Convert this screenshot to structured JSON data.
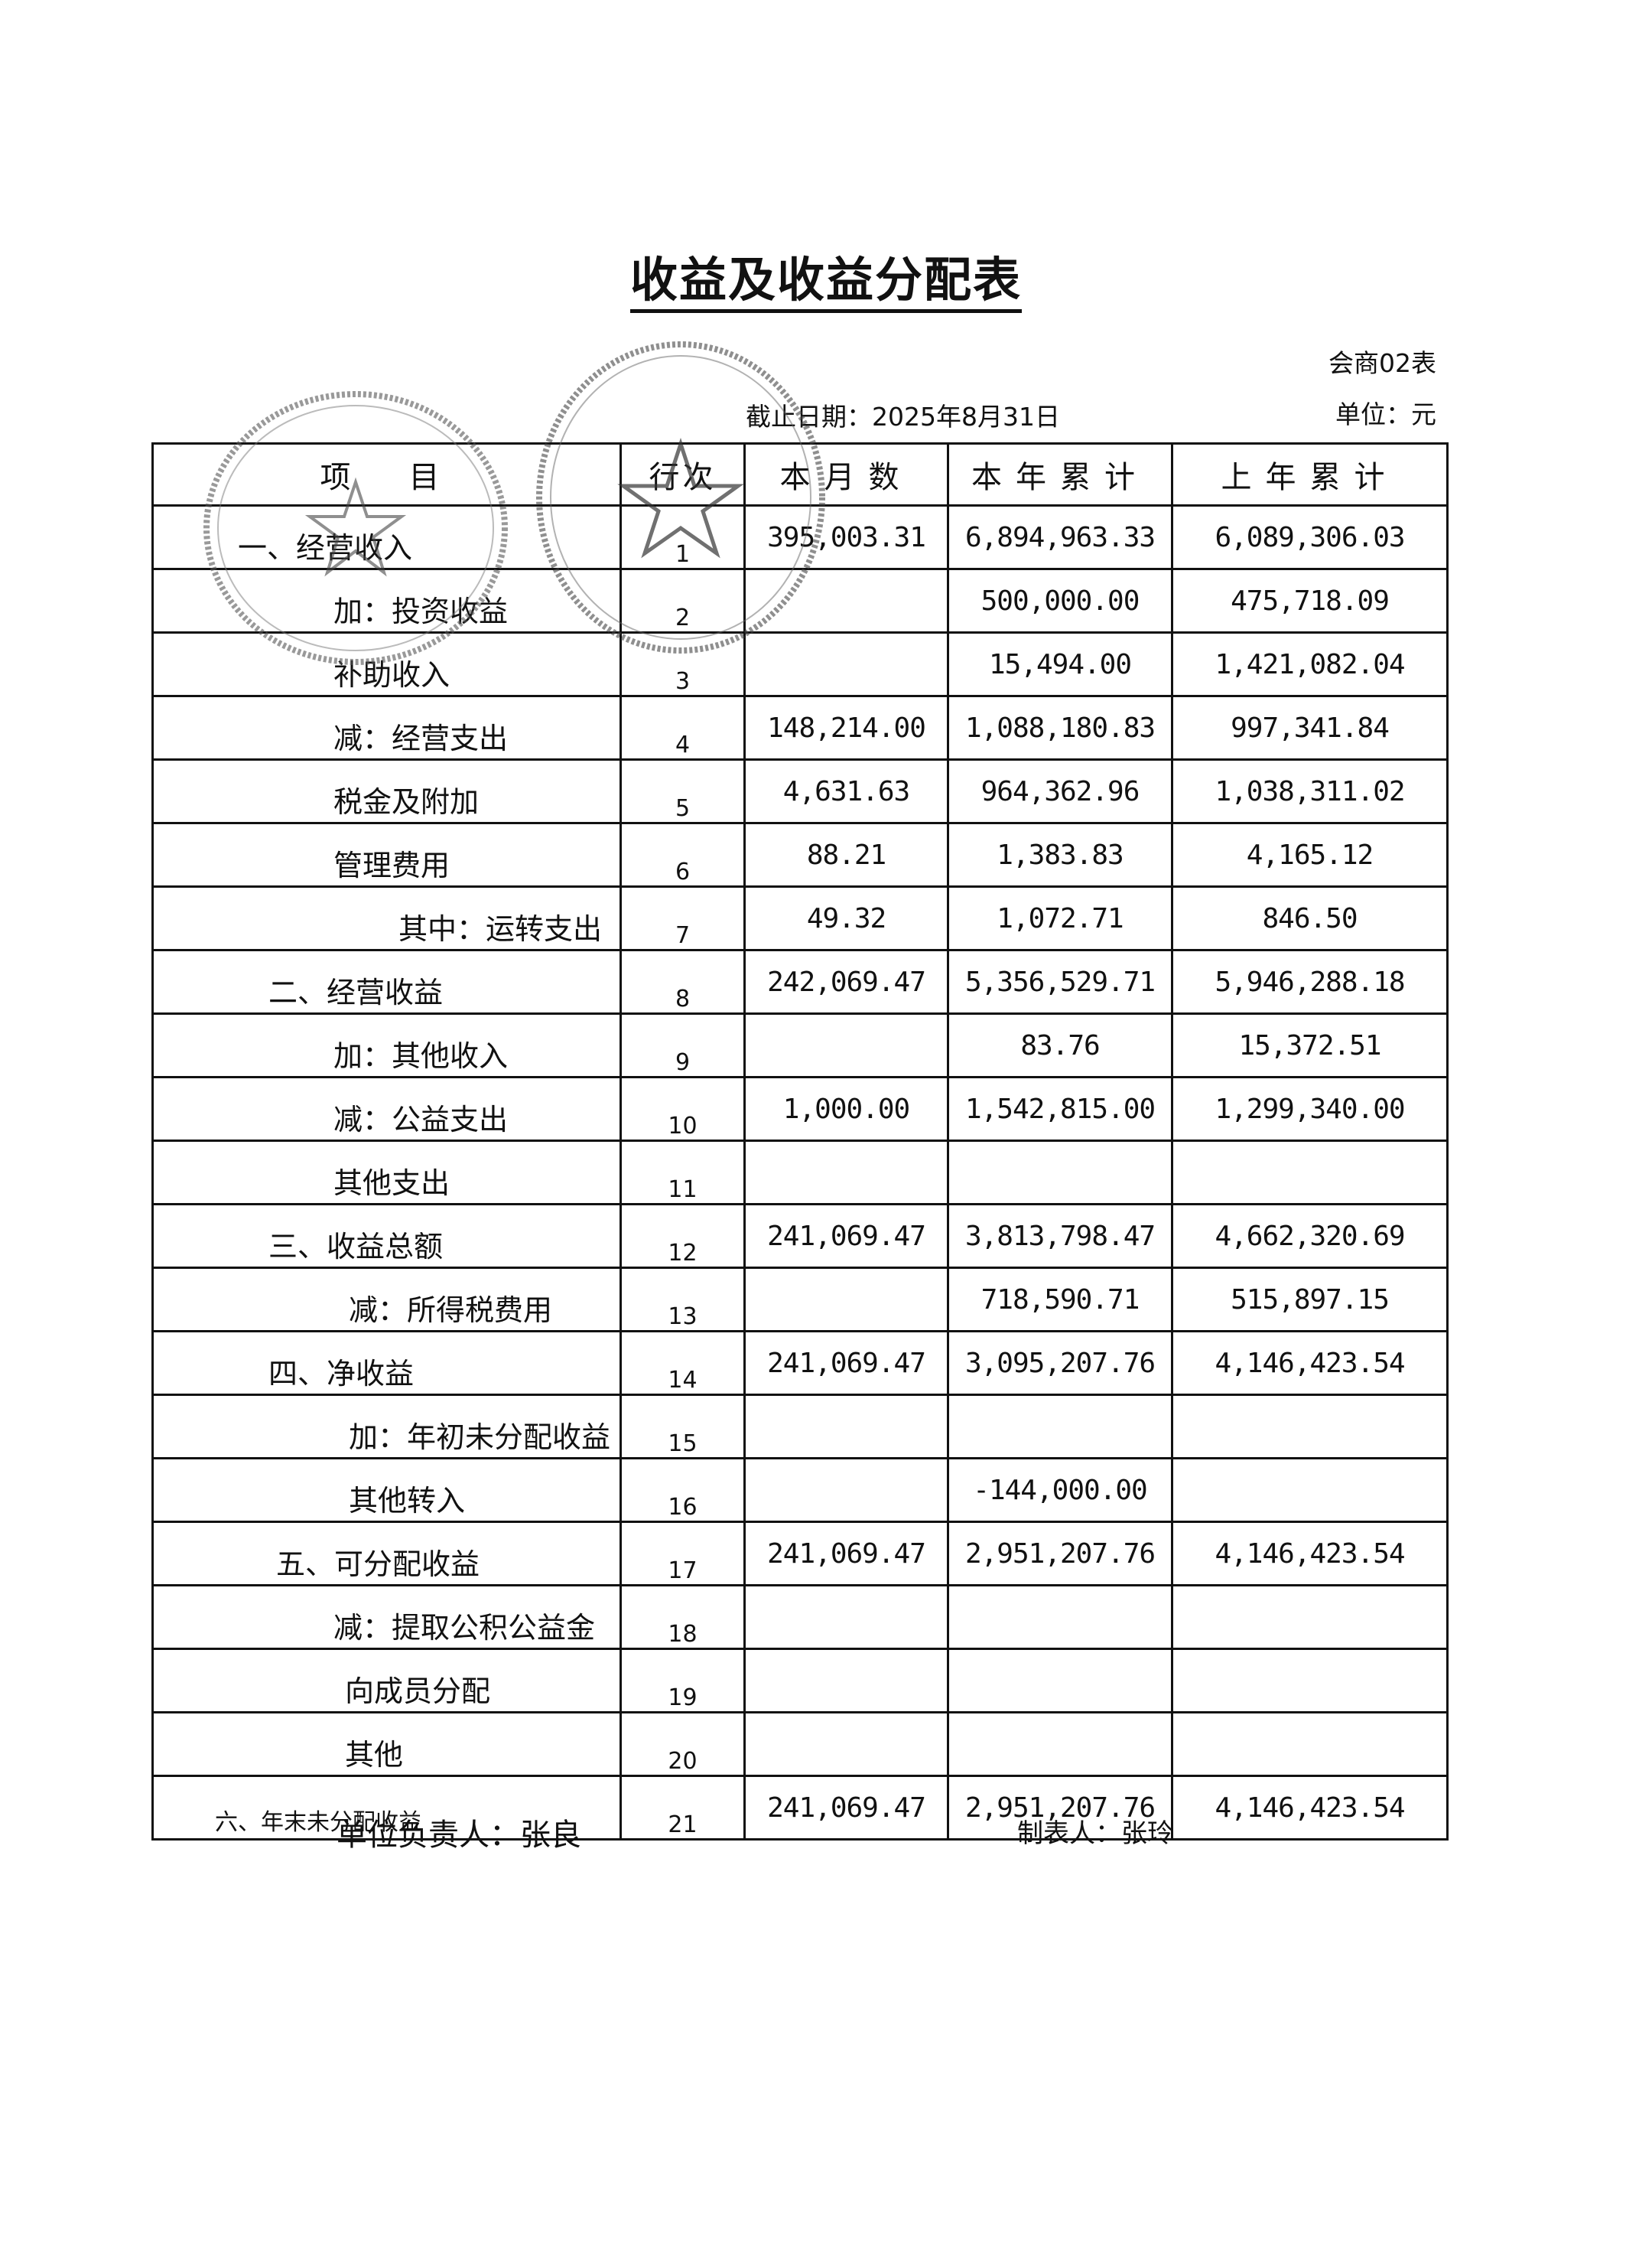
{
  "title": "收益及收益分配表",
  "form_no": "会商02表",
  "unit": "单位：元",
  "date": "截止日期：2025年8月31日",
  "table": {
    "headers": [
      "项　目",
      "行次",
      "本月数",
      "本年累计",
      "上年累计"
    ],
    "rows": [
      {
        "item": "一、经营收入",
        "line": "1",
        "month": "395,003.31",
        "ytd": "6,894,963.33",
        "prev": "6,089,306.03"
      },
      {
        "item": "加：投资收益",
        "line": "2",
        "month": "",
        "ytd": "500,000.00",
        "prev": "475,718.09"
      },
      {
        "item": "补助收入",
        "line": "3",
        "month": "",
        "ytd": "15,494.00",
        "prev": "1,421,082.04"
      },
      {
        "item": "减：经营支出",
        "line": "4",
        "month": "148,214.00",
        "ytd": "1,088,180.83",
        "prev": "997,341.84"
      },
      {
        "item": "税金及附加",
        "line": "5",
        "month": "4,631.63",
        "ytd": "964,362.96",
        "prev": "1,038,311.02"
      },
      {
        "item": "管理费用",
        "line": "6",
        "month": "88.21",
        "ytd": "1,383.83",
        "prev": "4,165.12"
      },
      {
        "item": "其中：运转支出",
        "line": "7",
        "month": "49.32",
        "ytd": "1,072.71",
        "prev": "846.50"
      },
      {
        "item": "二、经营收益",
        "line": "8",
        "month": "242,069.47",
        "ytd": "5,356,529.71",
        "prev": "5,946,288.18"
      },
      {
        "item": "加：其他收入",
        "line": "9",
        "month": "",
        "ytd": "83.76",
        "prev": "15,372.51"
      },
      {
        "item": "减：公益支出",
        "line": "10",
        "month": "1,000.00",
        "ytd": "1,542,815.00",
        "prev": "1,299,340.00"
      },
      {
        "item": "其他支出",
        "line": "11",
        "month": "",
        "ytd": "",
        "prev": ""
      },
      {
        "item": "三、收益总额",
        "line": "12",
        "month": "241,069.47",
        "ytd": "3,813,798.47",
        "prev": "4,662,320.69"
      },
      {
        "item": "减：所得税费用",
        "line": "13",
        "month": "",
        "ytd": "718,590.71",
        "prev": "515,897.15"
      },
      {
        "item": "四、净收益",
        "line": "14",
        "month": "241,069.47",
        "ytd": "3,095,207.76",
        "prev": "4,146,423.54"
      },
      {
        "item": "加：年初未分配收益",
        "line": "15",
        "month": "",
        "ytd": "",
        "prev": ""
      },
      {
        "item": "其他转入",
        "line": "16",
        "month": "",
        "ytd": "-144,000.00",
        "prev": ""
      },
      {
        "item": "五、可分配收益",
        "line": "17",
        "month": "241,069.47",
        "ytd": "2,951,207.76",
        "prev": "4,146,423.54"
      },
      {
        "item": "减：提取公积公益金",
        "line": "18",
        "month": "",
        "ytd": "",
        "prev": ""
      },
      {
        "item": "向成员分配",
        "line": "19",
        "month": "",
        "ytd": "",
        "prev": ""
      },
      {
        "item": "其他",
        "line": "20",
        "month": "",
        "ytd": "",
        "prev": ""
      },
      {
        "item": "六、年末未分配收益",
        "line": "21",
        "month": "241,069.47",
        "ytd": "2,951,207.76",
        "prev": "4,146,423.54"
      }
    ]
  },
  "footer": {
    "responsible": "单位负责人：张良",
    "preparer": "制表人：张玲"
  }
}
